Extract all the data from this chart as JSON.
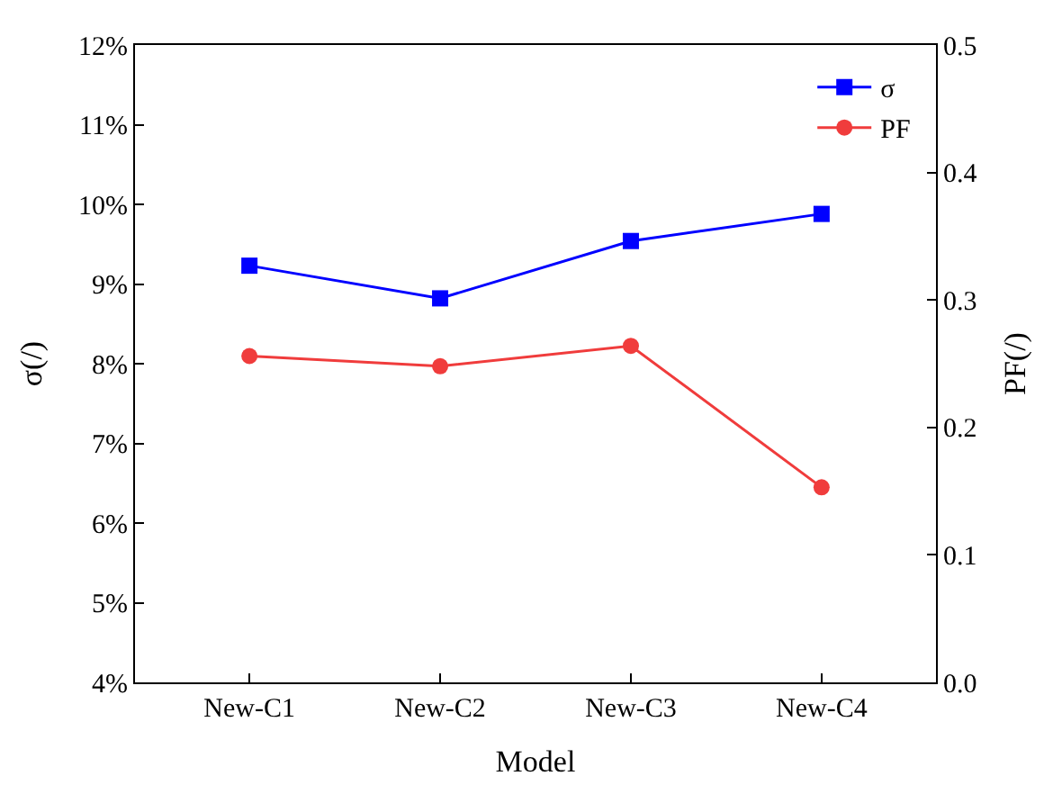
{
  "chart_data": {
    "type": "line",
    "xlabel": "Model",
    "ylabel": "σ(/)",
    "y2label": "PF(/)",
    "categories": [
      "New-C1",
      "New-C2",
      "New-C3",
      "New-C4"
    ],
    "series": [
      {
        "name": "σ",
        "color": "#0000ff",
        "marker": "square",
        "values": [
          9.23,
          8.82,
          9.54,
          9.88
        ]
      },
      {
        "name": "PF",
        "color": "#f03c3c",
        "marker": "circle",
        "axis": "y2",
        "values": [
          0.256,
          0.248,
          0.264,
          0.153
        ]
      }
    ],
    "ylim": [
      4,
      12
    ],
    "yticks": [
      {
        "value": 4,
        "label": "4%"
      },
      {
        "value": 5,
        "label": "5%"
      },
      {
        "value": 6,
        "label": "6%"
      },
      {
        "value": 7,
        "label": "7%"
      },
      {
        "value": 8,
        "label": "8%"
      },
      {
        "value": 9,
        "label": "9%"
      },
      {
        "value": 10,
        "label": "10%"
      },
      {
        "value": 11,
        "label": "11%"
      },
      {
        "value": 12,
        "label": "12%"
      }
    ],
    "y2lim": [
      0,
      0.5
    ],
    "y2ticks": [
      {
        "value": 0,
        "label": "0.0"
      },
      {
        "value": 0.1,
        "label": "0.1"
      },
      {
        "value": 0.2,
        "label": "0.2"
      },
      {
        "value": 0.3,
        "label": "0.3"
      },
      {
        "value": 0.4,
        "label": "0.4"
      },
      {
        "value": 0.5,
        "label": "0.5"
      }
    ],
    "legend": "top right",
    "line_style": "solid"
  }
}
